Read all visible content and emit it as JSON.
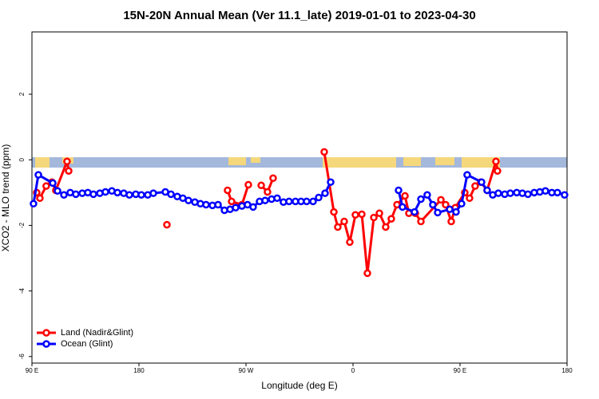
{
  "chart_data": {
    "type": "line",
    "title": "15N-20N Annual Mean (Ver 11.1_late)   2019-01-01 to 2023-04-30",
    "xlabel": "Longitude (deg E)",
    "ylabel": "XCO2 - MLO trend (ppm)",
    "xlim": [
      90,
      540
    ],
    "ylim": [
      -6.2,
      3.9
    ],
    "xticks": [
      {
        "value": 90,
        "label": "90 E"
      },
      180,
      {
        "value": 270,
        "label": "90 W"
      },
      {
        "value": 360,
        "label": "0"
      },
      {
        "value": 450,
        "label": "90 E"
      },
      {
        "value": 540,
        "label": "180"
      }
    ],
    "yticks": [
      -6,
      -4,
      -2,
      0,
      2
    ],
    "legend": "bottom-left",
    "series": [
      {
        "name": "Land (Nadir&Glint)",
        "color": "#ff0000",
        "x": [
          94,
          96.7,
          102,
          106.8,
          110.1,
          119.5,
          120.9,
          121,
          203.5,
          204,
          254.5,
          257.9,
          266.6,
          272,
          273,
          282.8,
          288.1,
          292.8,
          293,
          335.8,
          343.9,
          347.2,
          352.6,
          357.3,
          362,
          367.4,
          372.1,
          377.5,
          382.2,
          387.5,
          392.2,
          397,
          403.7,
          407,
          412.4,
          417.1,
          433.9,
          437.9,
          442.6,
          446,
          454,
          458,
          462.7,
          467.4,
          472.8,
          480.2,
          481.5
        ],
        "values": [
          -1.0,
          -1.17,
          -0.8,
          -0.68,
          -0.93,
          -0.05,
          -0.34,
          null,
          -1.98,
          null,
          -0.93,
          -1.27,
          -1.37,
          -0.76,
          null,
          -0.78,
          -0.98,
          -0.56,
          null,
          0.24,
          -1.59,
          -2.05,
          -1.88,
          -2.51,
          -1.68,
          -1.66,
          -3.46,
          -1.76,
          -1.63,
          -2.05,
          -1.8,
          -1.37,
          -1.1,
          -1.63,
          -1.63,
          -1.88,
          -1.22,
          -1.37,
          -1.88,
          -1.46,
          -1.0,
          -1.17,
          -0.8,
          -0.68,
          -0.93,
          -0.05,
          -0.34
        ]
      },
      {
        "name": "Ocean (Glint)",
        "color": "#0000ff",
        "x": [
          91.3,
          95.4,
          107.5,
          111.5,
          116.9,
          122.2,
          126.9,
          132.3,
          137,
          141.7,
          147.1,
          151.8,
          157.2,
          161.9,
          167.2,
          171.9,
          177.3,
          182,
          187.4,
          192.1,
          202.2,
          206.9,
          212.2,
          216.9,
          221.6,
          227,
          231.7,
          236.4,
          241.8,
          246.5,
          251.9,
          256.6,
          261.3,
          266.6,
          271.3,
          276,
          281.4,
          286.1,
          291.5,
          296.2,
          301.5,
          306.2,
          311.6,
          316.3,
          321,
          326.4,
          331.1,
          336.5,
          341.2,
          342,
          398.3,
          401.6,
          411.7,
          417.1,
          422.4,
          427.1,
          431.2,
          441.3,
          446.6,
          451.3,
          456,
          468.1,
          472.8,
          477.5,
          482.2,
          487.6,
          492.3,
          497.7,
          502.4,
          507.1,
          512.4,
          517.1,
          521.8,
          527.2,
          531.9,
          537.9
        ],
        "values": [
          -1.34,
          -0.46,
          -0.71,
          -0.95,
          -1.07,
          -1.0,
          -1.05,
          -1.02,
          -1.0,
          -1.05,
          -1.02,
          -0.98,
          -0.95,
          -1.0,
          -1.02,
          -1.07,
          -1.05,
          -1.07,
          -1.07,
          -1.02,
          -0.98,
          -1.05,
          -1.12,
          -1.17,
          -1.24,
          -1.29,
          -1.34,
          -1.37,
          -1.39,
          -1.37,
          -1.54,
          -1.51,
          -1.46,
          -1.41,
          -1.37,
          -1.44,
          -1.27,
          -1.24,
          -1.2,
          -1.17,
          -1.29,
          -1.27,
          -1.27,
          -1.27,
          -1.27,
          -1.27,
          -1.15,
          -1.02,
          -0.68,
          null,
          -0.93,
          -1.44,
          -1.59,
          -1.2,
          -1.07,
          -1.37,
          -1.61,
          -1.51,
          -1.59,
          -1.34,
          -0.46,
          -0.68,
          -0.93,
          -1.07,
          -1.02,
          -1.05,
          -1.02,
          -1.0,
          -1.02,
          -1.05,
          -1.0,
          -0.98,
          -0.95,
          -1.0,
          -1.0,
          -1.07
        ]
      }
    ]
  }
}
